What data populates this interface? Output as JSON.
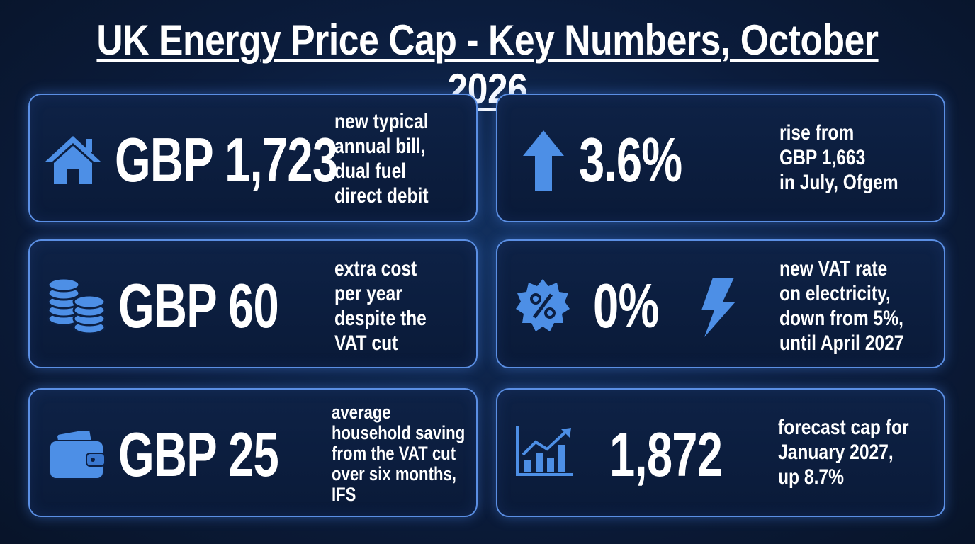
{
  "header": {
    "title": "UK Energy Price Cap - Key Numbers, October 2026"
  },
  "cards": [
    {
      "value": "GBP 1,723",
      "description": [
        "new typical",
        "annual bill,",
        "dual fuel",
        "direct debit"
      ]
    },
    {
      "value": "3.6%",
      "description": [
        "rise from",
        "GBP 1,663",
        "in July, Ofgem"
      ]
    },
    {
      "value": "GBP 60",
      "description": [
        "extra cost",
        "per year",
        "despite the",
        "VAT cut"
      ]
    },
    {
      "value": "0%",
      "description": [
        "new VAT rate",
        "on electricity,",
        "down from 5%,",
        "until April 2027"
      ]
    },
    {
      "value": "GBP 25",
      "description": [
        "average",
        "household saving",
        "from the VAT cut",
        "over six months,",
        "IFS"
      ]
    },
    {
      "value": "1,872",
      "description": [
        "forecast cap for",
        "January 2027,",
        "up 8.7%"
      ]
    }
  ]
}
